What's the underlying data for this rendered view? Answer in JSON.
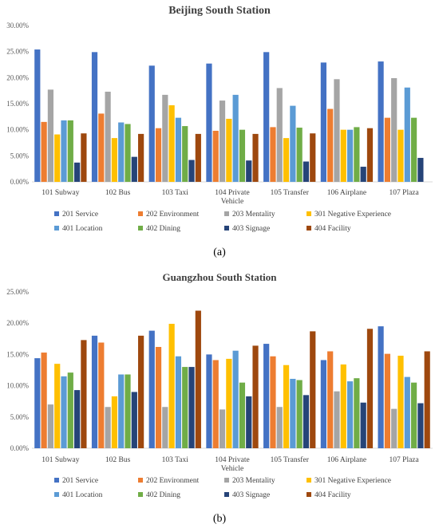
{
  "chart_data": [
    {
      "type": "bar",
      "title": "Beijing South Station",
      "panel_label": "(a)",
      "categories": [
        "101 Subway",
        "102 Bus",
        "103 Taxi",
        "104 Private Vehicle",
        "105 Transfer",
        "106 Airplane",
        "107 Plaza"
      ],
      "ylim": [
        0,
        30
      ],
      "yticks": [
        "0.00%",
        "5.00%",
        "10.00%",
        "15.00%",
        "20.00%",
        "25.00%",
        "30.00%"
      ],
      "grid": false,
      "legend_position": "bottom",
      "series": [
        {
          "name": "201 Service",
          "color": "#4472C4",
          "values": [
            25.4,
            24.9,
            22.3,
            22.7,
            24.9,
            22.9,
            23.1
          ]
        },
        {
          "name": "202 Environment",
          "color": "#ED7D31",
          "values": [
            11.5,
            13.1,
            10.3,
            9.8,
            10.5,
            14.0,
            12.3
          ]
        },
        {
          "name": "203 Mentality",
          "color": "#A5A5A5",
          "values": [
            17.7,
            17.3,
            16.7,
            15.6,
            18.0,
            19.7,
            19.9
          ]
        },
        {
          "name": "301 Negative Experience",
          "color": "#FFC000",
          "values": [
            9.1,
            8.4,
            14.7,
            12.1,
            8.4,
            10.0,
            10.0
          ]
        },
        {
          "name": "401 Location",
          "color": "#5B9BD5",
          "values": [
            11.8,
            11.4,
            12.3,
            16.7,
            14.6,
            10.0,
            18.1
          ]
        },
        {
          "name": "402 Dining",
          "color": "#70AD47",
          "values": [
            11.8,
            11.1,
            10.7,
            10.0,
            10.4,
            10.5,
            12.3
          ]
        },
        {
          "name": "403 Signage",
          "color": "#264478",
          "values": [
            3.7,
            4.8,
            4.2,
            4.1,
            3.9,
            2.9,
            4.6
          ]
        },
        {
          "name": "404 Facility",
          "color": "#9E480E",
          "values": [
            9.3,
            9.2,
            9.2,
            9.2,
            9.3,
            10.3,
            0
          ]
        }
      ]
    },
    {
      "type": "bar",
      "title": "Guangzhou South Station",
      "panel_label": "(b)",
      "categories": [
        "101 Subway",
        "102 Bus",
        "103 Taxi",
        "104 Private Vehicle",
        "105 Transfer",
        "106 Airplane",
        "107 Plaza"
      ],
      "ylim": [
        0,
        25
      ],
      "yticks": [
        "0.00%",
        "5.00%",
        "10.00%",
        "15.00%",
        "20.00%",
        "25.00%"
      ],
      "grid": false,
      "legend_position": "bottom",
      "series": [
        {
          "name": "201 Service",
          "color": "#4472C4",
          "values": [
            14.4,
            18.0,
            18.8,
            15.0,
            16.7,
            14.1,
            19.5
          ]
        },
        {
          "name": "202 Environment",
          "color": "#ED7D31",
          "values": [
            15.3,
            16.9,
            16.2,
            14.1,
            14.7,
            15.5,
            15.1
          ]
        },
        {
          "name": "203 Mentality",
          "color": "#A5A5A5",
          "values": [
            7.0,
            6.6,
            6.6,
            6.2,
            6.6,
            9.1,
            6.3
          ]
        },
        {
          "name": "301 Negative Experience",
          "color": "#FFC000",
          "values": [
            13.5,
            8.3,
            19.9,
            14.3,
            13.3,
            13.4,
            14.8
          ]
        },
        {
          "name": "401 Location",
          "color": "#5B9BD5",
          "values": [
            11.5,
            11.8,
            14.7,
            15.6,
            11.1,
            10.7,
            11.4
          ]
        },
        {
          "name": "402 Dining",
          "color": "#70AD47",
          "values": [
            12.1,
            11.8,
            13.0,
            10.5,
            10.9,
            11.2,
            10.5
          ]
        },
        {
          "name": "403 Signage",
          "color": "#264478",
          "values": [
            9.3,
            9.0,
            13.0,
            8.3,
            8.5,
            7.3,
            7.2
          ]
        },
        {
          "name": "404 Facility",
          "color": "#9E480E",
          "values": [
            17.3,
            18.0,
            22.0,
            16.4,
            18.7,
            19.1,
            15.5
          ]
        }
      ]
    }
  ]
}
